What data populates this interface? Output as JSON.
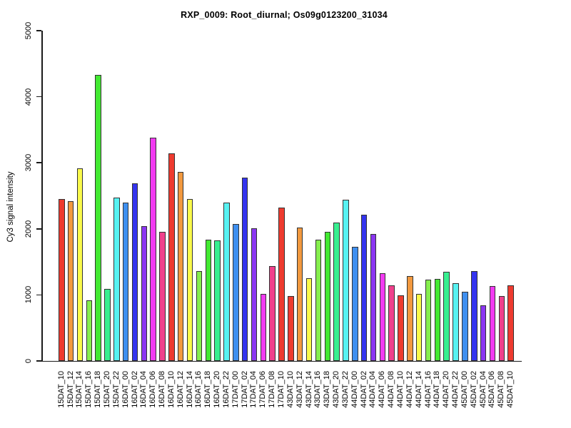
{
  "chart_data": {
    "type": "bar",
    "title": "RXP_0009: Root_diurnal; Os09g0123200_31034",
    "xlabel": "",
    "ylabel": "Cy3 signal intensity",
    "ylim": [
      0,
      5000
    ],
    "yticks": [
      0,
      1000,
      2000,
      3000,
      4000,
      5000
    ],
    "ytick_labels": [
      "0",
      "1000",
      "2000",
      "3000",
      "4000",
      "5000"
    ],
    "grid": false,
    "legend_position": "none",
    "background_color": "#FFFFFF",
    "axis_color": "#1A1A1A",
    "bar_border_color": "#333333",
    "palette_cycle": [
      "#EE3B2F",
      "#F2993F",
      "#FAFA4B",
      "#86EE4E",
      "#42E931",
      "#38EF90",
      "#57F2F2",
      "#3E8FF0",
      "#3434EF",
      "#8B36F2",
      "#F23BF2",
      "#F0418C"
    ],
    "categories": [
      "15DAT_10",
      "15DAT_12",
      "15DAT_14",
      "15DAT_16",
      "15DAT_18",
      "15DAT_20",
      "15DAT_22",
      "16DAT_00",
      "16DAT_02",
      "16DAT_04",
      "16DAT_06",
      "16DAT_08",
      "16DAT_10",
      "16DAT_12",
      "16DAT_14",
      "16DAT_16",
      "16DAT_18",
      "16DAT_20",
      "16DAT_22",
      "17DAT_00",
      "17DAT_02",
      "17DAT_04",
      "17DAT_06",
      "17DAT_08",
      "17DAT_10",
      "43DAT_10",
      "43DAT_12",
      "43DAT_14",
      "43DAT_16",
      "43DAT_18",
      "43DAT_20",
      "43DAT_22",
      "44DAT_00",
      "44DAT_02",
      "44DAT_04",
      "44DAT_06",
      "44DAT_08",
      "44DAT_10",
      "44DAT_12",
      "44DAT_14",
      "44DAT_16",
      "44DAT_18",
      "44DAT_20",
      "44DAT_22",
      "45DAT_00",
      "45DAT_02",
      "45DAT_04",
      "45DAT_06",
      "45DAT_08",
      "45DAT_10"
    ],
    "values": [
      2450,
      2420,
      2920,
      920,
      4330,
      1090,
      2470,
      2400,
      2690,
      2040,
      3380,
      1950,
      3140,
      2860,
      2450,
      1360,
      1840,
      1820,
      2400,
      2070,
      2780,
      2010,
      1010,
      1440,
      2320,
      980,
      2020,
      1250,
      1840,
      1950,
      2100,
      2440,
      1730,
      2210,
      1920,
      1330,
      1150,
      990,
      1290,
      1010,
      1230,
      1240,
      1350,
      1180,
      1050,
      1360,
      840,
      1130,
      980,
      1150
    ],
    "bar_colors": [
      "#EE3B2F",
      "#F2993F",
      "#FAFA4B",
      "#86EE4E",
      "#42E931",
      "#38EF90",
      "#57F2F2",
      "#3E8FF0",
      "#3434EF",
      "#8B36F2",
      "#F23BF2",
      "#F0418C",
      "#EE3B2F",
      "#F2993F",
      "#FAFA4B",
      "#86EE4E",
      "#42E931",
      "#38EF90",
      "#57F2F2",
      "#3E8FF0",
      "#3434EF",
      "#8B36F2",
      "#F23BF2",
      "#F0418C",
      "#EE3B2F",
      "#EE3B2F",
      "#F2993F",
      "#FAFA4B",
      "#86EE4E",
      "#42E931",
      "#38EF90",
      "#57F2F2",
      "#3E8FF0",
      "#3434EF",
      "#8B36F2",
      "#F23BF2",
      "#F0418C",
      "#EE3B2F",
      "#F2993F",
      "#FAFA4B",
      "#86EE4E",
      "#42E931",
      "#38EF90",
      "#57F2F2",
      "#3E8FF0",
      "#3434EF",
      "#8B36F2",
      "#F23BF2",
      "#F0418C",
      "#EE3B2F"
    ]
  }
}
